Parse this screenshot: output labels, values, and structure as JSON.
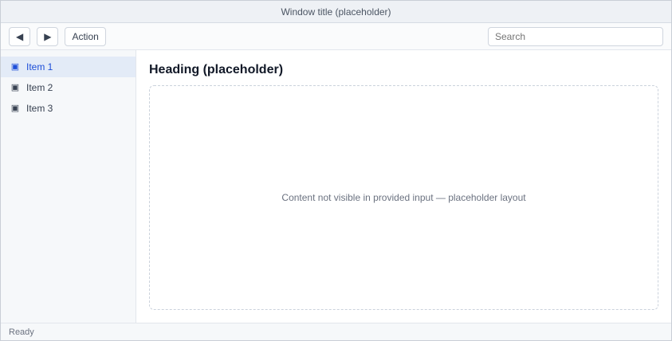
{
  "window": {
    "title": "Window title (placeholder)"
  },
  "toolbar": {
    "back_label": "◀",
    "forward_label": "▶",
    "action_label": "Action",
    "search_placeholder": "Search"
  },
  "sidebar": {
    "items": [
      {
        "label": "Item 1",
        "icon": "folder-icon"
      },
      {
        "label": "Item 2",
        "icon": "folder-icon"
      },
      {
        "label": "Item 3",
        "icon": "folder-icon"
      }
    ]
  },
  "main": {
    "heading": "Heading (placeholder)",
    "note": "Content not visible in provided input — placeholder layout"
  },
  "status": {
    "text": "Ready"
  }
}
